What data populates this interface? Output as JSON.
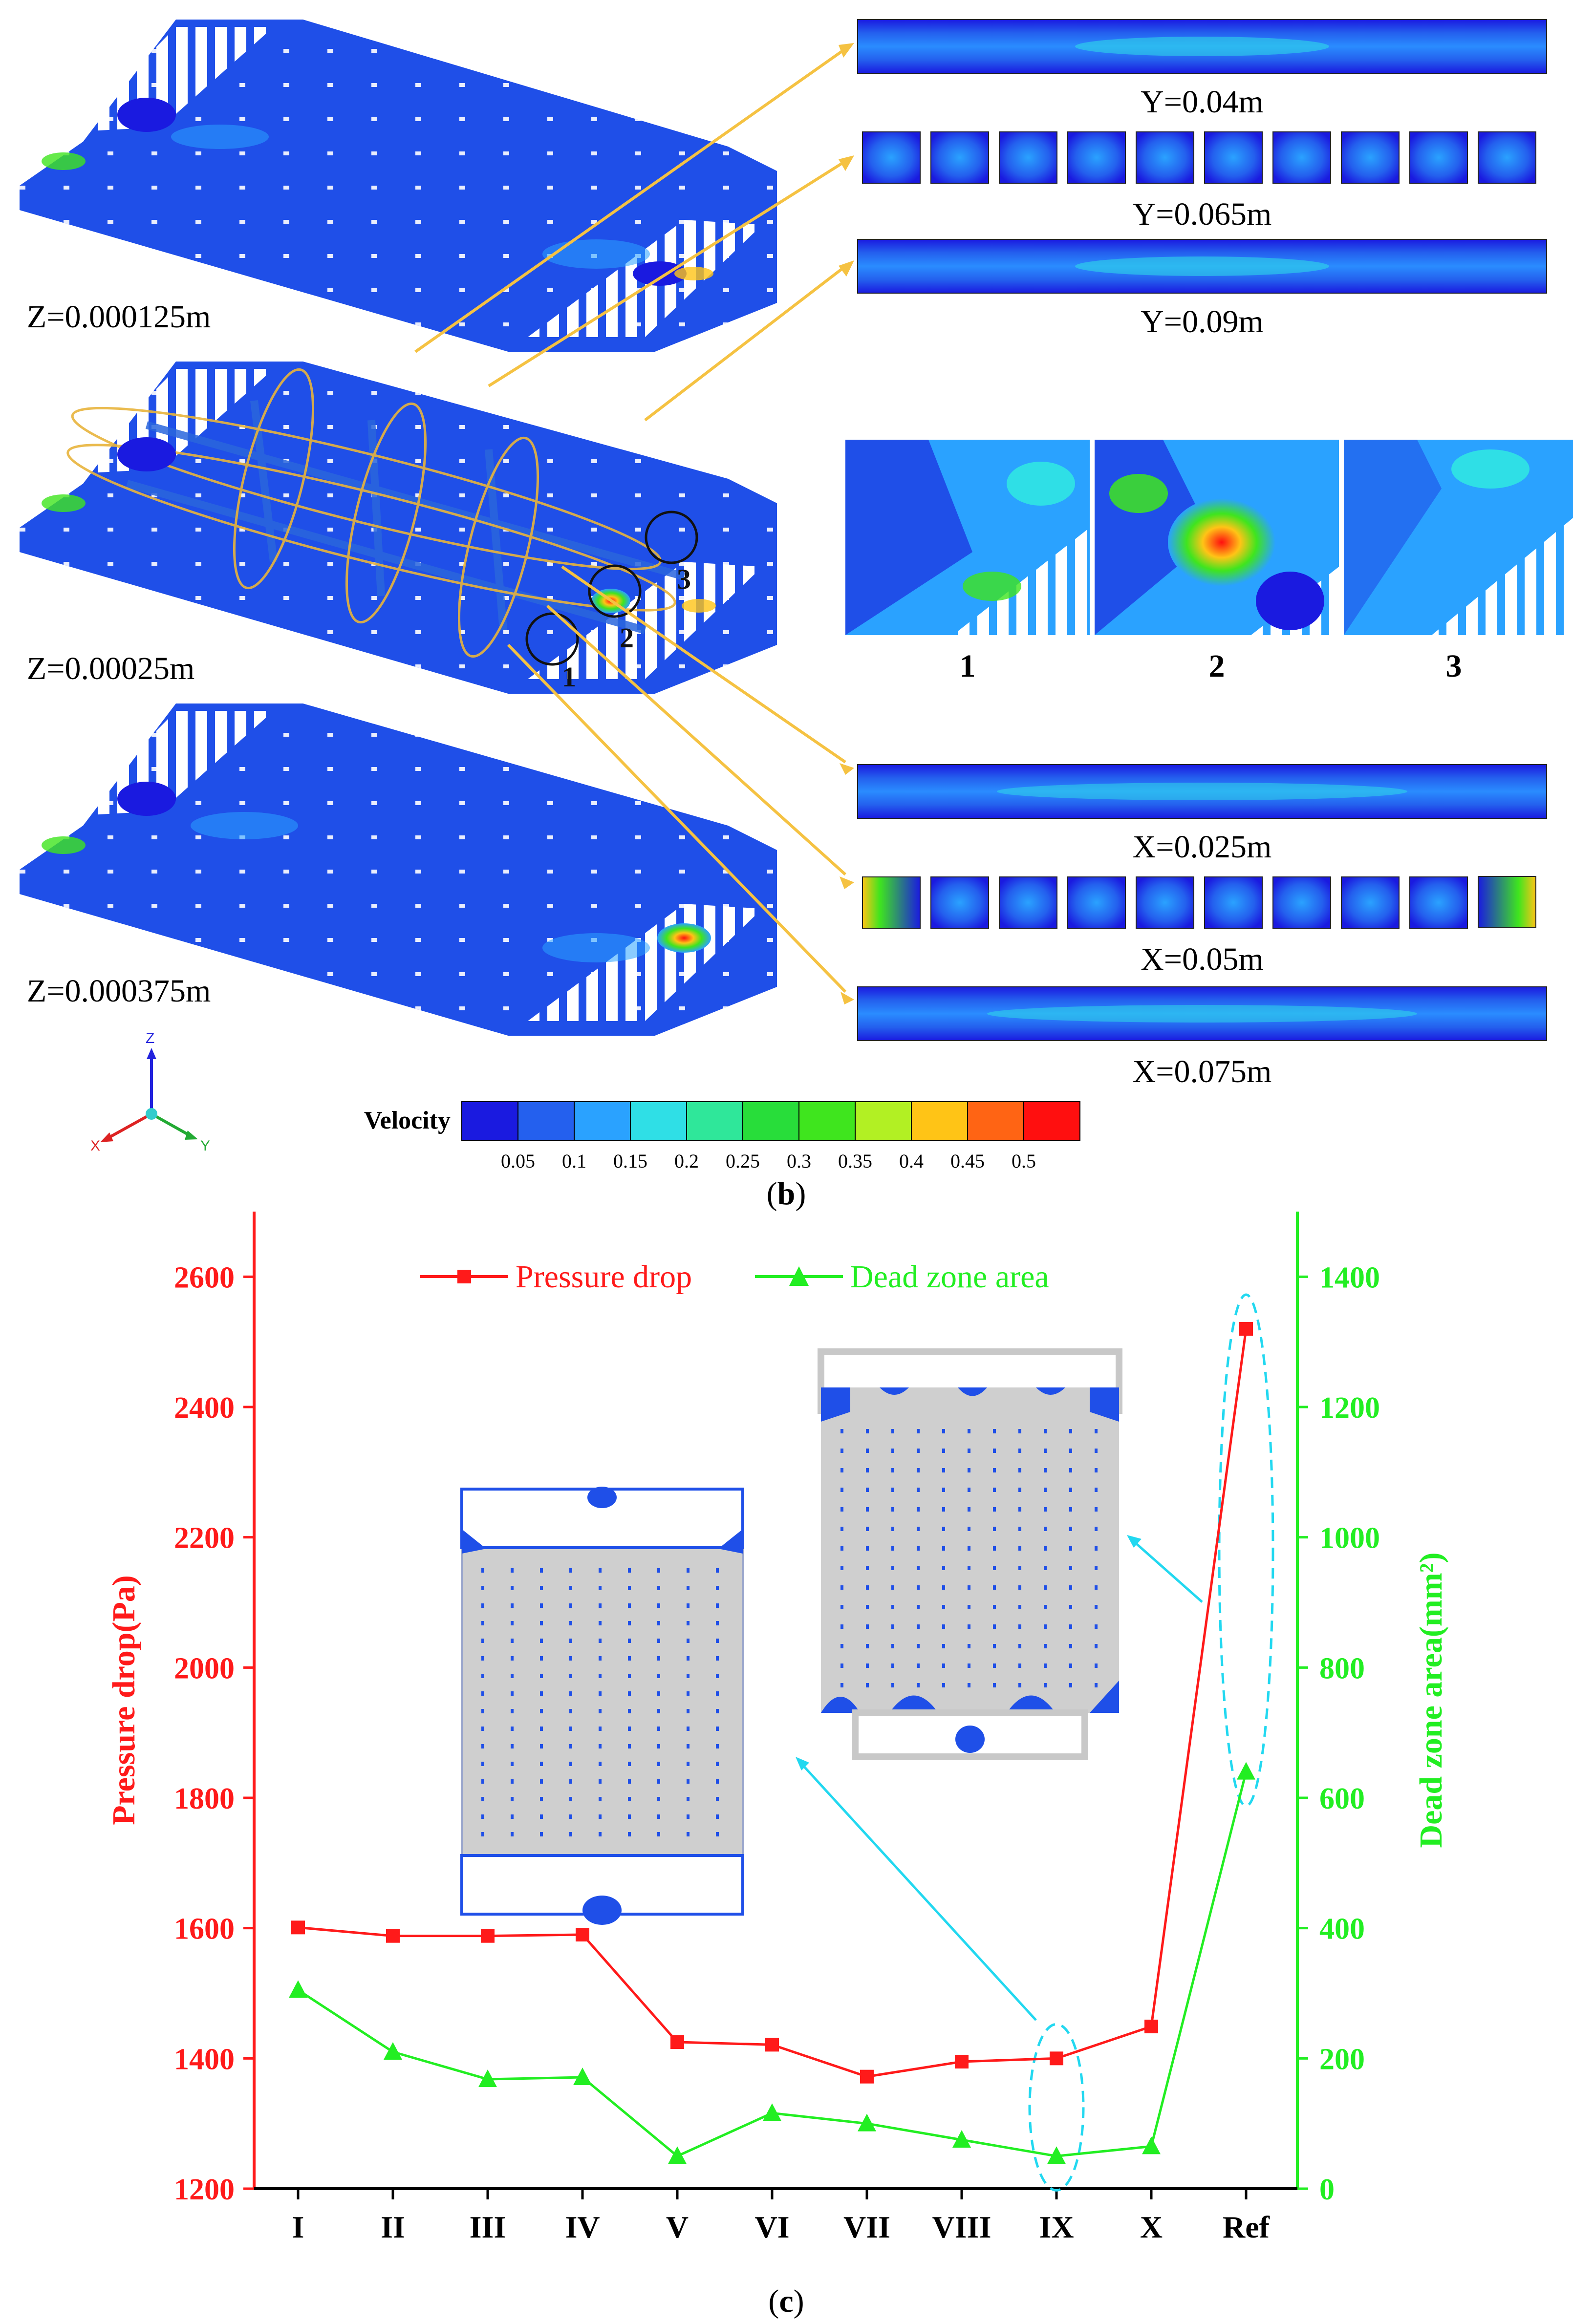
{
  "panel_b": {
    "caption": "b",
    "z_planes": [
      "Z=0.000125m",
      "Z=0.00025m",
      "Z=0.000375m"
    ],
    "y_sections": [
      "Y=0.04m",
      "Y=0.065m",
      "Y=0.09m"
    ],
    "x_sections": [
      "X=0.025m",
      "X=0.05m",
      "X=0.075m"
    ],
    "zoom_labels": [
      "1",
      "2",
      "3"
    ],
    "markers": [
      "1",
      "2",
      "3"
    ],
    "axes_triad": {
      "z": "Z",
      "x": "X",
      "y": "Y"
    },
    "colorbar": {
      "title": "Velocity",
      "ticks": [
        "0.05",
        "0.1",
        "0.15",
        "0.2",
        "0.25",
        "0.3",
        "0.35",
        "0.4",
        "0.45",
        "0.5"
      ],
      "colors": [
        "#1a1ae0",
        "#2460ee",
        "#2aa2ff",
        "#2fdfe6",
        "#2fe79a",
        "#28dd3a",
        "#3fe51e",
        "#b2f023",
        "#ffc416",
        "#ff6414",
        "#ff0f0f"
      ]
    }
  },
  "chart_data": {
    "type": "line",
    "caption": "c",
    "categories": [
      "I",
      "II",
      "III",
      "IV",
      "V",
      "VI",
      "VII",
      "VIII",
      "IX",
      "X",
      "Ref"
    ],
    "series": [
      {
        "name": "Pressure drop",
        "axis": "left",
        "color": "#ff1a1a",
        "marker": "square",
        "values": [
          1601,
          1588,
          1588,
          1590,
          1425,
          1421,
          1372,
          1395,
          1400,
          1449,
          2520
        ]
      },
      {
        "name": "Dead zone area",
        "axis": "right",
        "color": "#22ee22",
        "marker": "triangle",
        "values": [
          305,
          210,
          168,
          171,
          50,
          116,
          100,
          75,
          50,
          65,
          640
        ]
      }
    ],
    "ylabel": "Pressure drop(Pa)",
    "y2label": "Dead zone area(mm²)",
    "ylim": [
      1200,
      2700
    ],
    "y2lim": [
      0,
      1500
    ],
    "yticks": [
      1200,
      1400,
      1600,
      1800,
      2000,
      2200,
      2400,
      2600
    ],
    "y2ticks": [
      0,
      200,
      400,
      600,
      800,
      1000,
      1200,
      1400
    ],
    "legend_position": "top",
    "grid": false,
    "highlighted_categories": [
      "IX",
      "Ref"
    ]
  },
  "colors": {
    "pressure": "#ff1a1a",
    "deadzone": "#22ee22",
    "plate_blue": "#1f4fe8",
    "arrow": "#f5c242",
    "cyan_arrow": "#22d8f0",
    "inset_gray": "#cfcfcf"
  }
}
